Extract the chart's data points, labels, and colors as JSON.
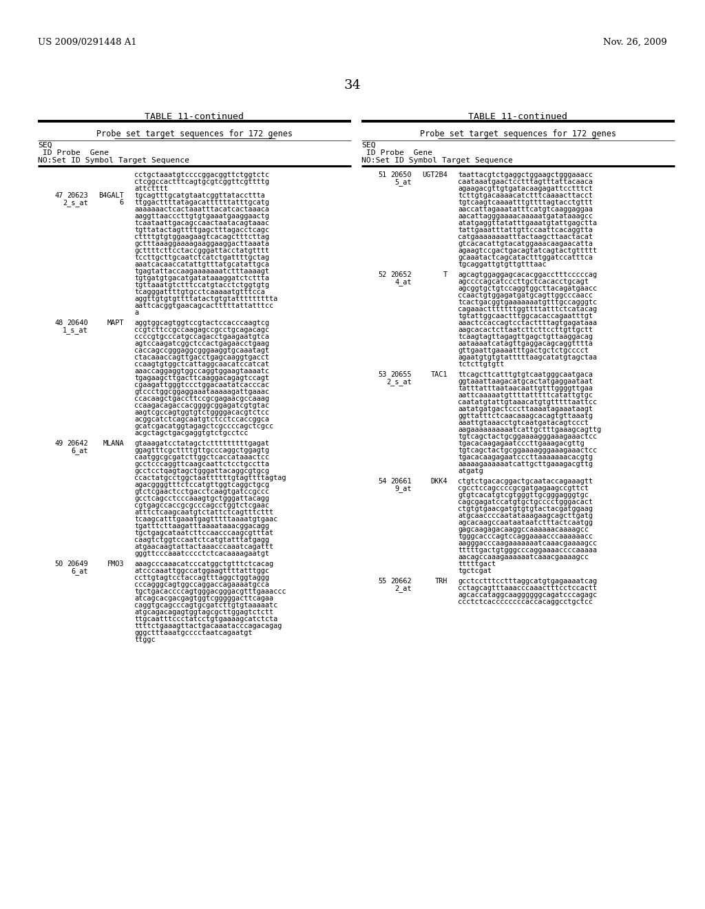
{
  "page_header_left": "US 2009/0291448 A1",
  "page_header_right": "Nov. 26, 2009",
  "page_number": "34",
  "table_title": "TABLE 11-continued",
  "table_subtitle": "Probe set target sequences for 172 genes",
  "bg_color": "#ffffff",
  "text_color": "#000000",
  "left_entries": [
    {
      "seq": "",
      "probe": "",
      "gene": "",
      "probe2": "",
      "extra": "",
      "lines": [
        "cctgctaaatgtccccggacggttctggtctc",
        "ctcggccactttcagtgcgtcggttcgttttg",
        "attctttt"
      ]
    },
    {
      "seq": "47",
      "probe": "20623",
      "gene": "B4GALT",
      "probe2": "2_s_at",
      "extra": "6",
      "lines": [
        "tgcagtttgcatgtaatcggttataccttta",
        "ttggacttttatagacattttttatttgcatg",
        "aaaaaaactcactaaatttacatcactaaaca",
        "aaggttaacccttgtgtgaaatgaaggaactg",
        "tcaataattgacagccaactaatacagtaaac",
        "tgttatactagttttgagctttagacctcagc",
        "cttttgtgtggaagaagtcacagctttcttag",
        "gctttaaaggaaaagaaggaaggacttaaata",
        "gcttttcttcctaccgggattacctatgtttt",
        "tccttgcttgcaatctcatctgattttgctag",
        "aaatcacaaccatattgtttatgcatattgca",
        "tgagtattaccaagaaaaaaatctttaaaagt",
        "tgtgatgtgacatgatataaaggatctcttta",
        "tgttaaatgtctttccatgtacctctggtgtg",
        "tcagggattttgtgcctcaaaaatgtttcca",
        "aggttgtgtgttttatactgtgtattttttttta",
        "aattcacggtgaacagcactttttattatttcc",
        "a"
      ]
    },
    {
      "seq": "48",
      "probe": "20640",
      "gene": "MAPT",
      "probe2": "1_s_at",
      "extra": "",
      "lines": [
        "aggtggcagtggtccgtactccacccaagtcg",
        "ccgtcttccgccaagagccgcctgcagacagc",
        "ccccgtgcccatgccagacctgaagaatgtca",
        "agtccaagatcggctccactgagaacctgaag",
        "caccagccgggaggcgggaaggtgcaaatagt",
        "ctacaaaccagttgacctgagcaaggtgacct",
        "ccaagtgtggctcattaggcaacatccatcat",
        "aaaccaggaggtggccaggtggaagtaaaatc",
        "tgagaagcttgacttcaaggacagagtccagt",
        "cgaagattgggtccctggacaatatcacccac",
        "gtccctggcggaggaaataaaaagattgaaac",
        "ccacaagctgaccttccgcgagaacgccaaag",
        "ccaagacagaccacggggcggagatcgtgtac",
        "aagtcgccagtggtgtctggggacacgtctcc",
        "acggcatctcagcaatgtctcctccaccggca",
        "gcatcgacatggtagagctcgccccagctcgcc",
        "acgctagctgacgaggtgtctgcctcc"
      ]
    },
    {
      "seq": "49",
      "probe": "20642",
      "gene": "MLANA",
      "probe2": "6_at",
      "extra": "",
      "lines": [
        "gtaaagatcctatagctctttttttttgagat",
        "ggagtttcgcttttgttgcccaggctggagtg",
        "caatggcgcgatcttggctcaccataaactcc",
        "gcctcccaggttcaagcaattctcctgcctta",
        "gcctcctqagtagctgggattacaggcgtgcg",
        "ccactatgcctggctaattttttgtagttttagtag",
        "agacggggtttctccatgttggtcaggctgcg",
        "gtctcgaactcctgacctcaagtgatccgccc",
        "gcctcagcctcccaaagtgctgggattacagg",
        "cgtgagccaccgcgcccagcctggtctcgaac",
        "atttctcaagcaatgtctattctcagtttcttt",
        "tcaagcatttgaaatgagtttttaaaatgtgaac",
        "tgatttcttaagatttaaaataaacggacagg",
        "tgctgagcataatcttccaacccaagcgtttat",
        "caagtctggtccaatctcatgtatttatgagg",
        "atgaacaagtattactaaacccaaatcagattt",
        "gggttcccaaatcccctctcacaaaagaatgt"
      ]
    },
    {
      "seq": "50",
      "probe": "20649",
      "gene": "FMO3",
      "probe2": "6_at",
      "extra": "",
      "lines": [
        "aaagcccaaacatcccatggctgtttctcacag",
        "atcccaaattggccatggaagttttatttggc",
        "ccttgtagtcctaccagtttaggctggtaggg",
        "cccagggcagtggccaggaccagaaaatgcca",
        "tgctgacaccccagtgggacgggacgtttgaaaccc",
        "atcagcacgacgagtggtcgggggacttcagaa",
        "caggtgcagcccagtgcgatcttgtgtaaaaatc",
        "atgcagacagagtggtagcgcttggagtctctt",
        "ttgcaatttccctatcctgtgaaaagcatctcta",
        "ttttctgaaagttactgacaaatacccagacagag",
        "gggctttaaatgcccctaatcagaatgt",
        "ttggc"
      ]
    }
  ],
  "right_entries": [
    {
      "seq": "51",
      "probe": "20650",
      "gene": "UGT2B4",
      "probe2": "5_at",
      "extra": "",
      "lines": [
        "taattacgtctgaggctggaagctgggaaacc",
        "caataaatgaactcctttagtttattacaaca",
        "agaagacgttgtgatacaagagattcctttct",
        "tcttgtgacaaaacatctttcaaaacttacct",
        "tgtcaagtcaaaatttgttttagtacctgttt",
        "aaccattagaaatatttcatgtcaaggaggaa",
        "aacattagggaaaacaaaaatgatataaagcc",
        "atatgaggttatatttgaaatgtattgagctta",
        "tattgaaatttattgttccaattcacaggtta",
        "catgaaaaaaaatttactaagcttaactacat",
        "gtcacacattgtacatggaaacaagaacatta",
        "agaagtccgactgacagtatcagtactgttttt",
        "gcaaatactcagcatactttggatccatttca",
        "tgcaggattgtgttgtttaac"
      ]
    },
    {
      "seq": "52",
      "probe": "20652",
      "gene": "T",
      "probe2": "4_at",
      "extra": "",
      "lines": [
        "agcagtggaggagcacacggacctttcccccag",
        "agccccagcatcccttgctcacacctgcagt",
        "agcggtgctgtccaggtggcttacagatgaacc",
        "ccaactgtggagatgatgcagttggcccaacc",
        "tcactgacggtgaaaaaaatgtttgccagggtc",
        "cagaaactttttttggttttatttctcatacag",
        "tgtattggcaactttggcacaccagaatttgt",
        "aaactccaccagtcctacttttagtgagataaa",
        "aagcacactcttaatcttcttccttgttgctt",
        "tcaagtagttagagttgagctgttaaggacag",
        "aataaaatcatagttgaggacagcaggtttta",
        "gttgaattgaaaatttgactgctctgcccct",
        "agaatgtgtgtatttttaagcatatgtagctaa",
        "tctcttgtgtt"
      ]
    },
    {
      "seq": "53",
      "probe": "20655",
      "gene": "TAC1",
      "probe2": "2_s_at",
      "extra": "",
      "lines": [
        "ttcagcttcatttgtgtcaatgggcaatgaca",
        "ggtaaattaagacatgcactatgaggaataat",
        "tatttatttaataacaattgtttggggttgaa",
        "aattcaaaaatgttttatttttcatattgtgc",
        "caatatgtattgtaaacatgtgtttttaattcc",
        "aatatgatgactcccttaaaatagaaataagt",
        "ggttatttctcaacaaagcacagtgttaaatg",
        "aaattgtaaacctgtcaatgatacagtccct",
        "aagaaaaaaaaaatcattgctttgaaagcagttg",
        "tgtcagctactgcggaaaagggaaagaaactcc",
        "tgacacaagagaatcccttgaaagacgttg",
        "tgtcagctactgcggaaaagggaaagaaactcc",
        "tgacacaagagaatcccttaaaaaaacacgtg",
        "aaaaagaaaaaatcattgcttgaaagacgttg",
        "atgatg"
      ]
    },
    {
      "seq": "54",
      "probe": "20661",
      "gene": "DKK4",
      "probe2": "9_at",
      "extra": "",
      "lines": [
        "ctgtctgacacggactgcaataccagaaagtt",
        "cgcctccagccccgcgatgagaagccgttct",
        "gtgtcacatgtcgtgggttgcgggagggtgc",
        "cagcgagatccatgtgctgcccctgggacact",
        "ctgtgtgaacgatgtgtgtactacgatggaag",
        "atgcaaccccaatataaagaagcagcttgatg",
        "agcacaagccaataataatctttactcaatgg",
        "gagcaagagacaaggccaaaaaacaaaagcc",
        "tgggcacccagtccaggaaaacccaaaaaacc",
        "aagggacccaagaaaaaaatcaaacgaaaagcc",
        "tttttgactgtgggcccaggaaaaccccaaaaa",
        "aacagccaaagaaaaaatcaaacgaaaagcc",
        "tttttgact",
        "tgctcgat"
      ]
    },
    {
      "seq": "55",
      "probe": "20662",
      "gene": "TRH",
      "probe2": "2_at",
      "extra": "",
      "lines": [
        "gcctcctttcctttaggcatgtgagaaaatcag",
        "cctagcagtttaaacccaaactttcctccactt",
        "agcaccataggcaaggggggcagatcccagagc",
        "ccctctcaccccccccaccacaggcctgctcc"
      ]
    }
  ]
}
